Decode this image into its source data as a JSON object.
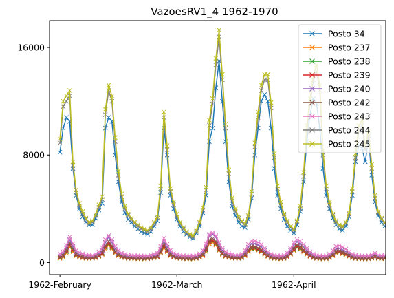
{
  "chart_data": {
    "type": "line",
    "title": "VazoesRV1_4 1962-1970",
    "xlabel": "",
    "ylabel": "",
    "ylim": [
      -900,
      18000
    ],
    "y_ticks": [
      {
        "value": 0,
        "label": "0"
      },
      {
        "value": 8000,
        "label": "8000"
      },
      {
        "value": 16000,
        "label": "16000"
      }
    ],
    "x_ticks": [
      {
        "index": 0,
        "label": "1962-February"
      },
      {
        "index": 36,
        "label": "1962-March"
      },
      {
        "index": 72,
        "label": "1962-April"
      }
    ],
    "xlim": [
      -3.2,
      100.3
    ],
    "marker": "x",
    "grid": false,
    "legend_position": "top-right",
    "series": [
      {
        "name": "Posto 34",
        "color": "#1f77b4",
        "values": [
          8200,
          10000,
          10800,
          10500,
          7000,
          5000,
          4000,
          3400,
          3000,
          2800,
          2800,
          3300,
          3900,
          4400,
          10000,
          10800,
          10500,
          8000,
          6000,
          4500,
          3700,
          3200,
          3000,
          2700,
          2500,
          2300,
          2200,
          2100,
          2300,
          2700,
          3100,
          5200,
          10000,
          8000,
          5000,
          4000,
          3200,
          2700,
          2300,
          2100,
          1900,
          1800,
          2200,
          2700,
          3700,
          5000,
          9000,
          10000,
          13000,
          15000,
          12000,
          9000,
          6000,
          4200,
          3500,
          3000,
          2700,
          2600,
          3200,
          4800,
          8000,
          10000,
          12000,
          12500,
          12000,
          10000,
          7000,
          5000,
          4000,
          3200,
          2700,
          2400,
          2200,
          2800,
          3800,
          6000,
          9000,
          11000,
          12200,
          11800,
          10000,
          7000,
          5000,
          4000,
          3300,
          2800,
          2500,
          2400,
          2700,
          3400,
          5000,
          7500,
          8700,
          8500,
          7500,
          9200,
          6500,
          4500,
          3500,
          3000,
          2700,
          2400,
          2200,
          2400,
          2800,
          3300,
          6000,
          4700,
          6000,
          4600,
          3800,
          3300,
          2900,
          2600,
          2300,
          2100,
          2000,
          1800,
          2300,
          3300,
          5600,
          5500,
          8800,
          10500,
          9200,
          6000,
          4000,
          3400,
          3000,
          2800,
          2500,
          2600,
          3000,
          3300,
          3500
        ]
      },
      {
        "name": "Posto 237",
        "color": "#ff7f0e",
        "values": [
          300,
          400,
          700,
          1200,
          800,
          500,
          400,
          350,
          300,
          300,
          300,
          350,
          450,
          600,
          1000,
          1300,
          1000,
          700,
          500,
          400,
          350,
          300,
          300,
          280,
          280,
          270,
          260,
          270,
          300,
          350,
          400,
          700,
          1100,
          800,
          500,
          400,
          320,
          300,
          280,
          270,
          260,
          260,
          300,
          380,
          500,
          800,
          1400,
          1500,
          1300,
          900,
          600,
          450,
          380,
          330,
          300,
          300,
          350,
          500,
          800,
          1000,
          1000,
          900,
          800,
          600,
          450,
          350,
          300,
          280,
          270,
          300,
          400,
          600,
          900,
          1100,
          1000,
          800,
          600,
          450,
          350,
          300,
          270,
          260,
          280,
          350,
          500,
          700,
          750,
          650,
          550,
          450,
          350,
          300,
          280,
          270,
          260,
          280,
          320,
          400,
          300,
          280,
          300,
          260,
          250,
          240,
          230,
          260,
          350,
          500,
          700,
          1000,
          1100,
          800,
          550,
          400,
          320,
          280,
          260,
          250,
          260,
          300,
          350,
          400
        ]
      },
      {
        "name": "Posto 238",
        "color": "#2ca02c",
        "values": [
          350,
          450,
          800,
          1300,
          900,
          550,
          450,
          380,
          330,
          320,
          320,
          380,
          480,
          650,
          1100,
          1400,
          1100,
          750,
          550,
          420,
          370,
          320,
          320,
          300,
          300,
          290,
          280,
          290,
          320,
          370,
          420,
          750,
          1200,
          850,
          550,
          420,
          340,
          320,
          300,
          290,
          280,
          280,
          320,
          400,
          550,
          900,
          1500,
          1600,
          1400,
          950,
          650,
          480,
          400,
          350,
          320,
          320,
          370,
          550,
          850,
          1050,
          1050,
          950,
          850,
          650,
          480,
          370,
          320,
          300,
          290,
          320,
          420,
          650,
          950,
          1150,
          1050,
          850,
          650,
          480,
          370,
          320,
          290,
          280,
          300,
          370,
          550,
          750,
          800,
          700,
          600,
          480,
          370,
          320,
          300,
          290,
          280,
          300,
          340,
          420,
          320,
          300,
          320,
          280,
          270,
          260,
          250,
          280,
          370,
          550,
          750,
          1050,
          1150,
          850,
          600,
          420,
          340,
          300,
          280,
          270,
          280,
          320,
          370,
          420
        ]
      },
      {
        "name": "Posto 239",
        "color": "#d62728",
        "values": [
          380,
          480,
          850,
          1350,
          950,
          580,
          470,
          400,
          350,
          340,
          340,
          400,
          500,
          680,
          1150,
          1450,
          1150,
          780,
          580,
          440,
          390,
          340,
          340,
          320,
          320,
          310,
          300,
          310,
          340,
          390,
          440,
          780,
          1250,
          880,
          580,
          440,
          360,
          340,
          320,
          310,
          300,
          300,
          340,
          420,
          580,
          950,
          1550,
          1650,
          1450,
          1000,
          680,
          500,
          420,
          370,
          340,
          340,
          390,
          580,
          880,
          1100,
          1100,
          1000,
          880,
          680,
          500,
          390,
          340,
          320,
          310,
          340,
          440,
          680,
          1000,
          1200,
          1100,
          880,
          680,
          500,
          390,
          340,
          310,
          300,
          320,
          390,
          580,
          780,
          830,
          730,
          630,
          500,
          390,
          340,
          320,
          310,
          300,
          320,
          360,
          440,
          340,
          320,
          340,
          300,
          290,
          280,
          270,
          300,
          390,
          580,
          780,
          1100,
          1200,
          880,
          630,
          440,
          360,
          320,
          300,
          290,
          300,
          340,
          390,
          440
        ]
      },
      {
        "name": "Posto 240",
        "color": "#9467bd",
        "values": [
          500,
          650,
          1100,
          1700,
          1200,
          750,
          600,
          520,
          450,
          430,
          430,
          500,
          650,
          900,
          1500,
          1900,
          1500,
          1000,
          750,
          570,
          500,
          440,
          440,
          410,
          410,
          400,
          390,
          400,
          440,
          500,
          570,
          1000,
          1600,
          1150,
          750,
          570,
          470,
          440,
          410,
          400,
          390,
          390,
          440,
          540,
          750,
          1250,
          2000,
          2100,
          1900,
          1300,
          880,
          650,
          540,
          480,
          440,
          440,
          500,
          750,
          1150,
          1400,
          1400,
          1300,
          1150,
          880,
          650,
          500,
          440,
          410,
          400,
          440,
          570,
          880,
          1300,
          1550,
          1400,
          1150,
          880,
          650,
          500,
          440,
          400,
          390,
          410,
          500,
          750,
          1000,
          1050,
          950,
          820,
          650,
          500,
          440,
          410,
          400,
          390,
          410,
          470,
          570,
          440,
          410,
          440,
          390,
          370,
          360,
          350,
          390,
          500,
          750,
          1000,
          1400,
          1550,
          1150,
          820,
          570,
          470,
          410,
          390,
          370,
          390,
          440,
          500,
          570
        ]
      },
      {
        "name": "Posto 242",
        "color": "#8c564b",
        "values": [
          420,
          540,
          920,
          1450,
          1020,
          630,
          510,
          440,
          380,
          370,
          370,
          440,
          550,
          750,
          1250,
          1580,
          1250,
          840,
          630,
          480,
          420,
          370,
          370,
          350,
          350,
          340,
          330,
          340,
          370,
          420,
          480,
          840,
          1350,
          950,
          630,
          480,
          390,
          370,
          350,
          340,
          330,
          330,
          370,
          460,
          630,
          1030,
          1680,
          1780,
          1580,
          1100,
          740,
          550,
          460,
          400,
          370,
          370,
          420,
          630,
          950,
          1180,
          1180,
          1080,
          950,
          740,
          550,
          420,
          370,
          350,
          340,
          370,
          480,
          740,
          1080,
          1300,
          1180,
          950,
          740,
          550,
          420,
          370,
          340,
          330,
          350,
          420,
          630,
          840,
          890,
          790,
          680,
          550,
          420,
          370,
          350,
          340,
          330,
          350,
          390,
          480,
          370,
          350,
          370,
          330,
          310,
          300,
          290,
          330,
          420,
          630,
          840,
          1180,
          1300,
          950,
          680,
          480,
          390,
          350,
          330,
          310,
          330,
          370,
          420,
          480
        ]
      },
      {
        "name": "Posto 243",
        "color": "#e377c2",
        "values": [
          650,
          800,
          1300,
          1900,
          1400,
          900,
          750,
          650,
          560,
          540,
          540,
          620,
          800,
          1100,
          1700,
          2000,
          1700,
          1200,
          900,
          700,
          620,
          550,
          550,
          510,
          510,
          500,
          490,
          500,
          550,
          620,
          700,
          1200,
          1800,
          1350,
          900,
          700,
          580,
          550,
          510,
          500,
          490,
          490,
          550,
          660,
          900,
          1400,
          2100,
          2200,
          2000,
          1500,
          1050,
          800,
          660,
          590,
          550,
          550,
          620,
          900,
          1350,
          1600,
          1600,
          1500,
          1350,
          1050,
          800,
          620,
          550,
          510,
          500,
          550,
          700,
          1050,
          1500,
          1700,
          1600,
          1350,
          1050,
          800,
          620,
          550,
          500,
          490,
          510,
          620,
          900,
          1200,
          1250,
          1150,
          1000,
          800,
          620,
          550,
          510,
          500,
          490,
          510,
          580,
          700,
          550,
          510,
          550,
          490,
          460,
          450,
          440,
          490,
          620,
          900,
          1200,
          1600,
          1700,
          1350,
          1000,
          700,
          580,
          510,
          490,
          460,
          490,
          550,
          620,
          700
        ]
      },
      {
        "name": "Posto 244",
        "color": "#7f7f7f",
        "values": [
          8900,
          11600,
          12000,
          12400,
          7200,
          5200,
          4200,
          3600,
          3200,
          2900,
          3000,
          3500,
          4100,
          4700,
          11000,
          12800,
          12000,
          9000,
          6500,
          4900,
          4000,
          3500,
          3200,
          2900,
          2700,
          2500,
          2400,
          2300,
          2500,
          2900,
          3300,
          5500,
          10800,
          8400,
          5300,
          4300,
          3400,
          2900,
          2500,
          2200,
          2000,
          1900,
          2300,
          2900,
          3900,
          5400,
          10200,
          11800,
          14700,
          16800,
          13600,
          10000,
          6600,
          4600,
          3800,
          3300,
          3000,
          2800,
          3400,
          5100,
          8600,
          10800,
          12800,
          13600,
          13600,
          11500,
          7800,
          5500,
          4300,
          3500,
          3000,
          2600,
          2400,
          3000,
          4000,
          6400,
          9800,
          11800,
          13600,
          14200,
          12800,
          8000,
          5500,
          4300,
          3500,
          3000,
          2700,
          2600,
          2900,
          3600,
          5300,
          7800,
          9800,
          10200,
          8400,
          9400,
          7000,
          4800,
          3700,
          3200,
          2900,
          2600,
          2400,
          2600,
          3000,
          3500,
          6200,
          5000,
          6200,
          4800,
          4000,
          3500,
          3100,
          2800,
          2500,
          2200,
          2100,
          1900,
          2400,
          3500,
          6200,
          6000,
          9200,
          11000,
          9600,
          6400,
          4200,
          3600,
          3200,
          3000,
          2700,
          2800,
          3200,
          3500,
          3800
        ]
      },
      {
        "name": "Posto 245",
        "color": "#bcbd22",
        "values": [
          9200,
          12000,
          12400,
          12800,
          7500,
          5400,
          4400,
          3800,
          3300,
          3000,
          3100,
          3600,
          4300,
          4900,
          11400,
          13200,
          12400,
          9300,
          6800,
          5100,
          4200,
          3600,
          3300,
          3000,
          2800,
          2600,
          2500,
          2400,
          2600,
          3000,
          3400,
          5700,
          11200,
          8700,
          5500,
          4500,
          3600,
          3000,
          2600,
          2300,
          2100,
          2000,
          2400,
          3000,
          4100,
          5600,
          10600,
          12200,
          15200,
          17300,
          14000,
          10300,
          6900,
          4800,
          4000,
          3400,
          3100,
          2900,
          3500,
          5300,
          8900,
          11200,
          13200,
          14000,
          14000,
          11900,
          8100,
          5700,
          4500,
          3600,
          3100,
          2700,
          2500,
          3100,
          4200,
          6700,
          10200,
          12200,
          14000,
          14700,
          13200,
          8300,
          5700,
          4500,
          3600,
          3100,
          2800,
          2700,
          3000,
          3700,
          5500,
          8100,
          10200,
          10600,
          8700,
          9800,
          7300,
          5000,
          3800,
          3300,
          3000,
          2700,
          2500,
          2700,
          3100,
          3600,
          6400,
          5200,
          6400,
          5000,
          4100,
          3600,
          3200,
          2900,
          2600,
          2300,
          2200,
          2000,
          2500,
          3600,
          6400,
          6200,
          9500,
          11400,
          9900,
          6600,
          4300,
          3700,
          3300,
          3100,
          2800,
          2900,
          3300,
          3600,
          3900
        ]
      }
    ]
  }
}
